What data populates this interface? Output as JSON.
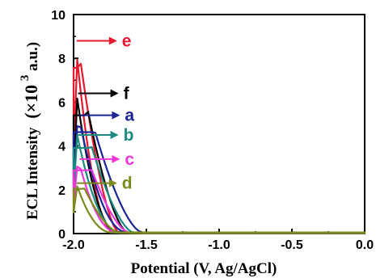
{
  "chart_data": {
    "type": "line",
    "xlabel": "Potential (V, Ag/AgCl)",
    "ylabel": "ECL Intensity",
    "ylabel_unit_prefix": "(×10",
    "ylabel_unit_exp": "3",
    "ylabel_unit_suffix": " a.u.)",
    "xlim": [
      -2.0,
      0.0
    ],
    "ylim": [
      0,
      10
    ],
    "x_ticks": [
      "-2.0",
      "-1.5",
      "-1.0",
      "-0.5",
      "0.0"
    ],
    "x_tick_values": [
      -2.0,
      -1.5,
      -1.0,
      -0.5,
      0.0
    ],
    "y_ticks": [
      "0",
      "2",
      "4",
      "6",
      "8",
      "10"
    ],
    "y_tick_values": [
      0,
      2,
      4,
      6,
      8,
      10
    ],
    "series": [
      {
        "name": "e",
        "color": "#e8192c",
        "peak_x": -1.99,
        "peak": 8.9,
        "decay": -1.72,
        "offset": 0.03,
        "label_y": 8.8
      },
      {
        "name": "f",
        "color": "#000000",
        "peak_x": -1.98,
        "peak": 6.35,
        "decay": -1.7,
        "offset": 0.07,
        "label_y": 6.4
      },
      {
        "name": "a",
        "color": "#1a2496",
        "peak_x": -1.97,
        "peak": 5.45,
        "decay": -1.63,
        "offset": 0.1,
        "label_y": 5.4
      },
      {
        "name": "b",
        "color": "#1b8a80",
        "peak_x": -1.98,
        "peak": 4.6,
        "decay": -1.68,
        "offset": 0.09,
        "label_y": 4.5
      },
      {
        "name": "c",
        "color": "#f035d8",
        "peak_x": -1.97,
        "peak": 3.4,
        "decay": -1.7,
        "offset": 0.08,
        "label_y": 3.4
      },
      {
        "name": "d",
        "color": "#7c8a1c",
        "peak_x": -1.99,
        "peak": 2.4,
        "decay": -1.74,
        "offset": 0.05,
        "label_y": 2.3
      }
    ],
    "label_colors": {
      "e": "#e8192c",
      "f": "#000000",
      "a": "#1a2496",
      "b": "#1b8a80",
      "c": "#f035d8",
      "d": "#7c8a1c"
    }
  }
}
